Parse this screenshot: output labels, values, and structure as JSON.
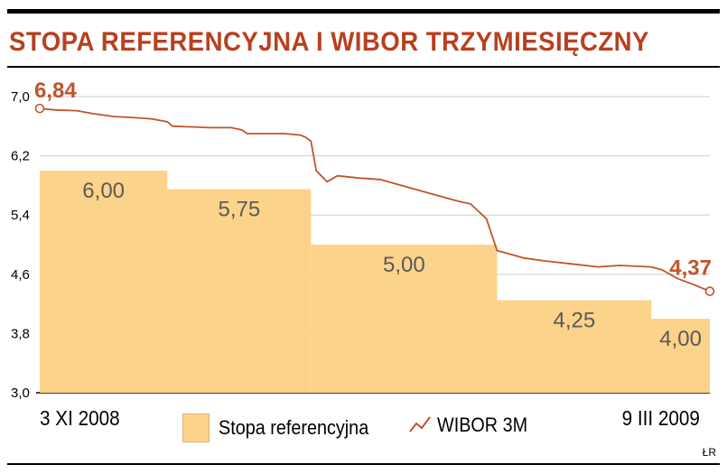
{
  "title": "STOPA REFERENCYJNA I WIBOR TRZYMIESIĘCZNY",
  "x_start_label": "3 XI 2008",
  "x_end_label": "9 III 2009",
  "credit": "ŁR",
  "colors": {
    "title": "#b8401f",
    "bars": "#fcd38a",
    "line": "#c0542c",
    "grid": "#cfcfcf",
    "bar_labels": "#5a5a5a"
  },
  "chart_data": {
    "type": "area",
    "x_range": [
      "2008-11-03",
      "2009-03-09"
    ],
    "ylim": [
      3.0,
      7.0
    ],
    "yticks": [
      "3,0",
      "3,8",
      "4,6",
      "5,4",
      "6,2",
      "7,0"
    ],
    "ytick_values": [
      3.0,
      3.8,
      4.6,
      5.4,
      6.2,
      7.0
    ],
    "grid": true,
    "legend": "bottom-center",
    "series": [
      {
        "name": "Stopa referencyjna",
        "kind": "step-area",
        "steps": [
          {
            "from": "2008-11-03",
            "to": "2008-11-27",
            "value": 6.0,
            "label": "6,00"
          },
          {
            "from": "2008-11-27",
            "to": "2008-12-24",
            "value": 5.75,
            "label": "5,75"
          },
          {
            "from": "2008-12-24",
            "to": "2009-01-28",
            "value": 5.0,
            "label": "5,00"
          },
          {
            "from": "2009-01-28",
            "to": "2009-02-26",
            "value": 4.25,
            "label": "4,25"
          },
          {
            "from": "2009-02-26",
            "to": "2009-03-09",
            "value": 4.0,
            "label": "4,00"
          }
        ]
      },
      {
        "name": "WIBOR 3M",
        "kind": "line",
        "points": [
          [
            "2008-11-03",
            6.84
          ],
          [
            "2008-11-06",
            6.82
          ],
          [
            "2008-11-10",
            6.81
          ],
          [
            "2008-11-13",
            6.77
          ],
          [
            "2008-11-17",
            6.73
          ],
          [
            "2008-11-20",
            6.72
          ],
          [
            "2008-11-24",
            6.7
          ],
          [
            "2008-11-27",
            6.66
          ],
          [
            "2008-11-28",
            6.6
          ],
          [
            "2008-12-02",
            6.59
          ],
          [
            "2008-12-05",
            6.58
          ],
          [
            "2008-12-09",
            6.58
          ],
          [
            "2008-12-11",
            6.55
          ],
          [
            "2008-12-12",
            6.5
          ],
          [
            "2008-12-16",
            6.5
          ],
          [
            "2008-12-19",
            6.5
          ],
          [
            "2008-12-22",
            6.48
          ],
          [
            "2008-12-23",
            6.45
          ],
          [
            "2008-12-24",
            6.4
          ],
          [
            "2008-12-25",
            6.0
          ],
          [
            "2008-12-27",
            5.85
          ],
          [
            "2008-12-29",
            5.93
          ],
          [
            "2009-01-02",
            5.9
          ],
          [
            "2009-01-06",
            5.88
          ],
          [
            "2009-01-10",
            5.8
          ],
          [
            "2009-01-15",
            5.7
          ],
          [
            "2009-01-20",
            5.6
          ],
          [
            "2009-01-23",
            5.55
          ],
          [
            "2009-01-26",
            5.35
          ],
          [
            "2009-01-28",
            4.92
          ],
          [
            "2009-01-30",
            4.88
          ],
          [
            "2009-02-02",
            4.82
          ],
          [
            "2009-02-06",
            4.78
          ],
          [
            "2009-02-11",
            4.74
          ],
          [
            "2009-02-16",
            4.7
          ],
          [
            "2009-02-20",
            4.72
          ],
          [
            "2009-02-26",
            4.7
          ],
          [
            "2009-02-28",
            4.66
          ],
          [
            "2009-03-03",
            4.54
          ],
          [
            "2009-03-06",
            4.46
          ],
          [
            "2009-03-09",
            4.37
          ]
        ],
        "start_label": "6,84",
        "end_label": "4,37"
      }
    ]
  }
}
